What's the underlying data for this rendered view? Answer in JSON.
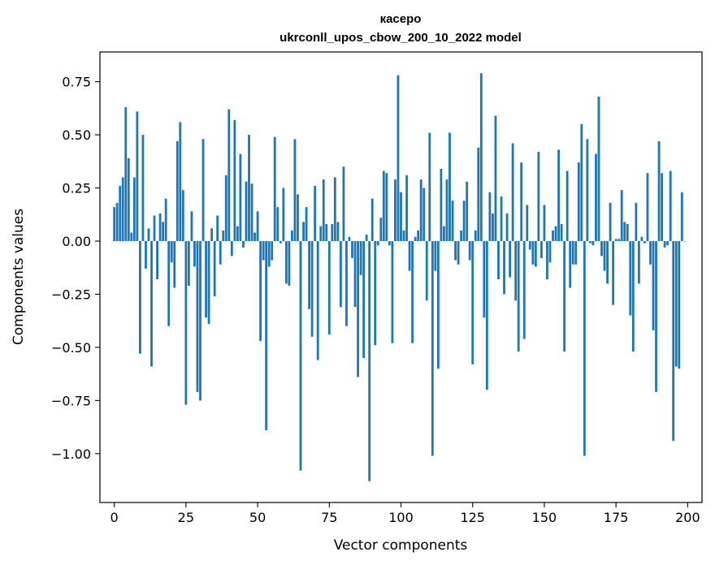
{
  "chart_data": {
    "type": "bar",
    "title_line1": "касеро",
    "title_line2": "ukrconll_upos_cbow_200_10_2022 model",
    "xlabel": "Vector components",
    "ylabel": "Components values",
    "xlim": [
      -5,
      205
    ],
    "ylim": [
      -1.23,
      0.89
    ],
    "xticks": [
      0,
      25,
      50,
      75,
      100,
      125,
      150,
      175,
      200
    ],
    "yticks": [
      -1.0,
      -0.75,
      -0.5,
      -0.25,
      0.0,
      0.25,
      0.5,
      0.75
    ],
    "ytick_labels": [
      "−1.00",
      "−0.75",
      "−0.50",
      "−0.25",
      "0.00",
      "0.25",
      "0.50",
      "0.75"
    ],
    "bar_color": "#1f77b4",
    "grid": false,
    "values": [
      0.16,
      0.18,
      0.26,
      0.3,
      0.63,
      0.39,
      0.04,
      0.3,
      0.61,
      -0.53,
      0.5,
      -0.13,
      0.06,
      -0.59,
      0.12,
      -0.18,
      0.13,
      0.09,
      0.2,
      -0.4,
      -0.1,
      -0.22,
      0.47,
      0.56,
      0.24,
      -0.77,
      -0.21,
      0.14,
      -0.12,
      -0.71,
      -0.75,
      0.48,
      -0.36,
      -0.39,
      0.06,
      -0.26,
      0.12,
      -0.11,
      0.05,
      0.31,
      0.62,
      -0.07,
      0.57,
      0.07,
      0.41,
      -0.03,
      0.28,
      0.5,
      0.27,
      0.04,
      0.14,
      -0.47,
      -0.09,
      -0.89,
      -0.12,
      -0.09,
      0.49,
      0.16,
      -0.01,
      0.25,
      -0.2,
      -0.21,
      0.05,
      0.48,
      0.22,
      -1.08,
      0.09,
      0.16,
      -0.32,
      -0.45,
      0.26,
      -0.56,
      0.07,
      0.29,
      0.08,
      -0.44,
      0.08,
      0.3,
      0.09,
      -0.31,
      0.35,
      -0.4,
      0.02,
      -0.08,
      -0.31,
      -0.64,
      -0.16,
      -0.55,
      0.03,
      -1.13,
      0.2,
      -0.49,
      -0.02,
      0.11,
      0.33,
      0.32,
      -0.02,
      -0.48,
      0.29,
      0.78,
      0.23,
      0.05,
      0.31,
      -0.14,
      -0.48,
      0.02,
      0.05,
      0.29,
      0.25,
      -0.28,
      0.51,
      -1.01,
      -0.14,
      -0.6,
      0.34,
      0.07,
      0.29,
      0.51,
      0.19,
      -0.09,
      -0.11,
      0.05,
      0.19,
      0.28,
      -0.09,
      -0.58,
      0.05,
      0.44,
      0.79,
      -0.36,
      -0.7,
      0.23,
      0.13,
      0.59,
      -0.18,
      0.21,
      -0.25,
      0.13,
      -0.17,
      0.46,
      -0.28,
      -0.52,
      0.37,
      -0.46,
      0.17,
      -0.04,
      -0.11,
      -0.12,
      0.42,
      -0.08,
      0.17,
      -0.18,
      -0.1,
      0.05,
      0.07,
      0.43,
      0.08,
      -0.52,
      0.33,
      -0.22,
      -0.11,
      -0.11,
      0.37,
      0.55,
      -1.01,
      0.48,
      -0.01,
      -0.02,
      0.41,
      0.68,
      -0.07,
      -0.14,
      -0.2,
      0.18,
      -0.3,
      0.01,
      0.01,
      0.24,
      0.09,
      0.08,
      -0.35,
      -0.52,
      0.18,
      -0.2,
      0.02,
      -0.01,
      0.32,
      -0.11,
      -0.42,
      -0.71,
      0.47,
      0.32,
      -0.03,
      -0.02,
      0.33,
      -0.94,
      -0.59,
      -0.6,
      0.23,
      0.0
    ]
  }
}
